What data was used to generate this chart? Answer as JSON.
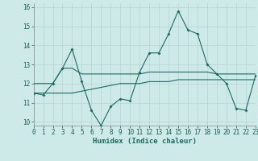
{
  "xlabel": "Humidex (Indice chaleur)",
  "bg_color": "#ceeae8",
  "grid_color": "#b8d8d5",
  "line_color": "#1a6b63",
  "line1": [
    11.5,
    11.4,
    12.0,
    12.8,
    13.8,
    12.1,
    10.6,
    9.8,
    10.8,
    11.2,
    11.1,
    12.6,
    13.6,
    13.6,
    14.6,
    15.8,
    14.8,
    14.6,
    13.0,
    12.5,
    12.0,
    10.7,
    10.6,
    12.4
  ],
  "line2": [
    12.0,
    12.0,
    12.0,
    12.8,
    12.8,
    12.5,
    12.5,
    12.5,
    12.5,
    12.5,
    12.5,
    12.5,
    12.6,
    12.6,
    12.6,
    12.6,
    12.6,
    12.6,
    12.6,
    12.5,
    12.5,
    12.5,
    12.5,
    12.5
  ],
  "line3": [
    11.5,
    11.5,
    11.5,
    11.5,
    11.5,
    11.6,
    11.7,
    11.8,
    11.9,
    12.0,
    12.0,
    12.0,
    12.1,
    12.1,
    12.1,
    12.2,
    12.2,
    12.2,
    12.2,
    12.2,
    12.2,
    12.2,
    12.2,
    12.2
  ],
  "xlim": [
    0,
    23
  ],
  "ylim": [
    9.8,
    16.2
  ],
  "yticks": [
    10,
    11,
    12,
    13,
    14,
    15,
    16
  ],
  "xticks": [
    0,
    1,
    2,
    3,
    4,
    5,
    6,
    7,
    8,
    9,
    10,
    11,
    12,
    13,
    14,
    15,
    16,
    17,
    18,
    19,
    20,
    21,
    22,
    23
  ]
}
